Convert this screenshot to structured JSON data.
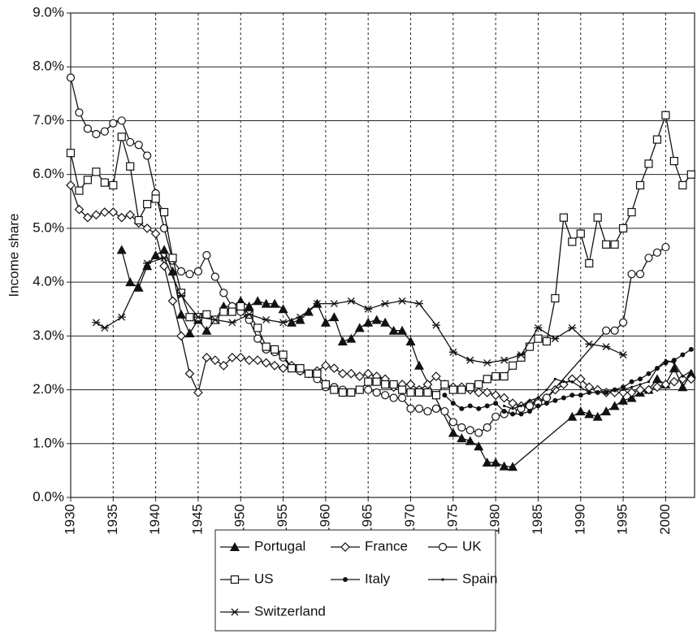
{
  "chart_data": {
    "type": "line",
    "ylabel": "Income share",
    "xlim": [
      1930,
      2003.4
    ],
    "ylim": [
      0,
      9
    ],
    "xticks": [
      1930,
      1935,
      1940,
      1945,
      1950,
      1955,
      1960,
      1965,
      1970,
      1975,
      1980,
      1985,
      1990,
      1995,
      2000
    ],
    "yticks": [
      {
        "value": 0,
        "label": "0.0%"
      },
      {
        "value": 1,
        "label": "1.0%"
      },
      {
        "value": 2,
        "label": "2.0%"
      },
      {
        "value": 3,
        "label": "3.0%"
      },
      {
        "value": 4,
        "label": "4.0%"
      },
      {
        "value": 5,
        "label": "5.0%"
      },
      {
        "value": 6,
        "label": "6.0%"
      },
      {
        "value": 7,
        "label": "7.0%"
      },
      {
        "value": 8,
        "label": "8.0%"
      },
      {
        "value": 9,
        "label": "9.0%"
      }
    ],
    "grid": true,
    "legend": "bottom",
    "series": [
      {
        "name": "Portugal",
        "color": "#111",
        "marker": "triangle",
        "x": [
          1936,
          1937,
          1938,
          1939,
          1940,
          1941,
          1942,
          1943,
          1944,
          1945,
          1946,
          1947,
          1948,
          1949,
          1950,
          1951,
          1952,
          1953,
          1954,
          1955,
          1956,
          1957,
          1958,
          1959,
          1960,
          1961,
          1962,
          1963,
          1964,
          1965,
          1966,
          1967,
          1968,
          1969,
          1970,
          1971,
          1975,
          1976,
          1977,
          1978,
          1979,
          1980,
          1981,
          1982,
          1989,
          1990,
          1991,
          1992,
          1993,
          1994,
          1995,
          1996,
          1997,
          1998,
          1999,
          2000,
          2001,
          2002,
          2003
        ],
        "values": [
          4.6,
          4.0,
          3.9,
          4.3,
          4.5,
          4.6,
          4.2,
          3.4,
          3.05,
          3.3,
          3.1,
          3.3,
          3.55,
          3.55,
          3.65,
          3.55,
          3.65,
          3.6,
          3.6,
          3.5,
          3.25,
          3.3,
          3.45,
          3.6,
          3.25,
          3.35,
          2.9,
          2.95,
          3.15,
          3.25,
          3.3,
          3.25,
          3.1,
          3.1,
          2.9,
          2.45,
          1.2,
          1.1,
          1.05,
          0.95,
          0.65,
          0.65,
          0.58,
          0.57,
          1.5,
          1.6,
          1.55,
          1.5,
          1.6,
          1.7,
          1.8,
          1.85,
          1.95,
          2.0,
          2.2,
          2.1,
          2.4,
          2.05,
          2.3
        ]
      },
      {
        "name": "France",
        "color": "#111",
        "marker": "diamond",
        "x": [
          1930,
          1931,
          1932,
          1933,
          1934,
          1935,
          1936,
          1937,
          1938,
          1939,
          1940,
          1941,
          1942,
          1943,
          1944,
          1945,
          1946,
          1947,
          1948,
          1949,
          1950,
          1951,
          1952,
          1953,
          1954,
          1955,
          1956,
          1957,
          1958,
          1959,
          1960,
          1961,
          1962,
          1963,
          1964,
          1965,
          1966,
          1967,
          1968,
          1969,
          1970,
          1971,
          1972,
          1973,
          1974,
          1975,
          1976,
          1977,
          1978,
          1979,
          1980,
          1981,
          1982,
          1983,
          1984,
          1985,
          1986,
          1987,
          1988,
          1989,
          1990,
          1991,
          1992,
          1993,
          1994,
          1995,
          1996,
          1997,
          1998,
          1999,
          2000,
          2001,
          2002,
          2003
        ],
        "values": [
          5.8,
          5.35,
          5.2,
          5.25,
          5.3,
          5.3,
          5.2,
          5.25,
          5.1,
          5.0,
          4.9,
          4.3,
          3.65,
          3.0,
          2.3,
          1.95,
          2.6,
          2.55,
          2.45,
          2.6,
          2.6,
          2.55,
          2.55,
          2.5,
          2.45,
          2.4,
          2.45,
          2.35,
          2.3,
          2.35,
          2.45,
          2.4,
          2.3,
          2.3,
          2.25,
          2.3,
          2.25,
          2.2,
          2.05,
          2.1,
          2.1,
          2.0,
          2.1,
          2.25,
          2.1,
          2.05,
          2.05,
          2.0,
          1.95,
          1.95,
          1.9,
          1.85,
          1.75,
          1.7,
          1.75,
          1.8,
          1.85,
          2.0,
          2.1,
          2.2,
          2.2,
          2.05,
          2.0,
          1.95,
          1.95,
          1.95,
          1.95,
          2.0,
          2.0,
          2.05,
          2.1,
          2.15,
          2.2,
          2.2
        ]
      },
      {
        "name": "UK",
        "color": "#111",
        "marker": "circle",
        "x": [
          1930,
          1931,
          1932,
          1933,
          1934,
          1935,
          1936,
          1937,
          1938,
          1939,
          1940,
          1941,
          1942,
          1943,
          1944,
          1945,
          1946,
          1947,
          1948,
          1949,
          1950,
          1951,
          1952,
          1953,
          1954,
          1955,
          1956,
          1957,
          1958,
          1959,
          1960,
          1961,
          1962,
          1963,
          1964,
          1965,
          1966,
          1967,
          1968,
          1969,
          1970,
          1971,
          1972,
          1973,
          1974,
          1975,
          1976,
          1977,
          1978,
          1979,
          1980,
          1981,
          1982,
          1983,
          1984,
          1985,
          1986,
          1993,
          1994,
          1995,
          1996,
          1997,
          1998,
          1999,
          2000
        ],
        "values": [
          7.8,
          7.15,
          6.85,
          6.75,
          6.8,
          6.95,
          7.0,
          6.6,
          6.55,
          6.35,
          5.65,
          5.0,
          4.4,
          4.2,
          4.15,
          4.2,
          4.5,
          4.1,
          3.8,
          3.55,
          3.45,
          3.3,
          2.95,
          2.75,
          2.7,
          2.6,
          2.4,
          2.35,
          2.3,
          2.2,
          2.05,
          2.05,
          2.0,
          1.95,
          2.0,
          2.0,
          1.95,
          1.9,
          1.85,
          1.85,
          1.65,
          1.65,
          1.6,
          1.65,
          1.6,
          1.4,
          1.3,
          1.25,
          1.2,
          1.3,
          1.5,
          1.55,
          1.6,
          1.65,
          1.7,
          1.75,
          1.85,
          3.1,
          3.1,
          3.25,
          4.15,
          4.15,
          4.45,
          4.55,
          4.65
        ]
      },
      {
        "name": "US",
        "color": "#111",
        "marker": "square",
        "x": [
          1930,
          1931,
          1932,
          1933,
          1934,
          1935,
          1936,
          1937,
          1938,
          1939,
          1940,
          1941,
          1942,
          1943,
          1944,
          1945,
          1946,
          1947,
          1948,
          1949,
          1950,
          1951,
          1952,
          1953,
          1954,
          1955,
          1956,
          1957,
          1958,
          1959,
          1960,
          1961,
          1962,
          1963,
          1964,
          1965,
          1966,
          1967,
          1968,
          1969,
          1970,
          1971,
          1972,
          1973,
          1974,
          1975,
          1976,
          1977,
          1978,
          1979,
          1980,
          1981,
          1982,
          1983,
          1984,
          1985,
          1986,
          1987,
          1988,
          1989,
          1990,
          1991,
          1992,
          1993,
          1994,
          1995,
          1996,
          1997,
          1998,
          1999,
          2000,
          2001,
          2002,
          2003
        ],
        "values": [
          6.4,
          5.7,
          5.9,
          6.05,
          5.85,
          5.8,
          6.7,
          6.15,
          5.15,
          5.45,
          5.55,
          5.3,
          4.45,
          3.8,
          3.35,
          3.35,
          3.4,
          3.3,
          3.45,
          3.45,
          3.55,
          3.4,
          3.15,
          2.8,
          2.75,
          2.65,
          2.4,
          2.4,
          2.3,
          2.3,
          2.1,
          2.0,
          1.95,
          1.95,
          2.0,
          2.15,
          2.15,
          2.1,
          2.1,
          2.0,
          1.95,
          1.95,
          1.95,
          1.9,
          2.1,
          2.0,
          2.0,
          2.05,
          2.1,
          2.2,
          2.25,
          2.25,
          2.45,
          2.6,
          2.8,
          2.95,
          2.9,
          3.7,
          5.2,
          4.75,
          4.9,
          4.35,
          5.2,
          4.7,
          4.7,
          5.0,
          5.3,
          5.8,
          6.2,
          6.65,
          7.1,
          6.25,
          5.8,
          6.0
        ]
      },
      {
        "name": "Italy",
        "color": "#111",
        "marker": "dot",
        "x": [
          1974,
          1975,
          1976,
          1977,
          1978,
          1979,
          1980,
          1981,
          1982,
          1983,
          1984,
          1985,
          1986,
          1987,
          1988,
          1989,
          1990,
          1991,
          1992,
          1993,
          1994,
          1995,
          1996,
          1997,
          1998,
          1999,
          2000,
          2001,
          2002,
          2003
        ],
        "values": [
          1.9,
          1.75,
          1.65,
          1.7,
          1.65,
          1.7,
          1.75,
          1.6,
          1.55,
          1.55,
          1.6,
          1.7,
          1.75,
          1.8,
          1.85,
          1.9,
          1.9,
          1.95,
          1.95,
          1.95,
          2.0,
          2.05,
          2.15,
          2.2,
          2.3,
          2.4,
          2.5,
          2.55,
          2.65,
          2.75
        ]
      },
      {
        "name": "Spain",
        "color": "#111",
        "marker": "smalldot",
        "x": [
          1981,
          1982,
          1983,
          1984,
          1985,
          1986,
          1987,
          1988,
          1989,
          1990,
          1991,
          1992,
          1993,
          1994,
          1995,
          1996,
          1997,
          1998,
          1999,
          2000,
          2001,
          2002,
          2003
        ],
        "values": [
          1.7,
          1.65,
          1.7,
          1.8,
          1.85,
          2.0,
          2.2,
          2.15,
          2.15,
          2.05,
          1.95,
          1.95,
          1.95,
          2.0,
          2.0,
          2.05,
          2.1,
          2.15,
          2.4,
          2.55,
          2.5,
          2.25,
          2.35
        ]
      },
      {
        "name": "Switzerland",
        "color": "#111",
        "marker": "asterisk",
        "x": [
          1933,
          1934,
          1936,
          1939,
          1941,
          1943,
          1945,
          1947,
          1949,
          1951,
          1953,
          1955,
          1957,
          1959,
          1961,
          1963,
          1965,
          1967,
          1969,
          1971,
          1973,
          1975,
          1977,
          1979,
          1981,
          1983,
          1985,
          1987,
          1989,
          1991,
          1993,
          1995
        ],
        "values": [
          3.25,
          3.15,
          3.35,
          4.35,
          4.45,
          3.75,
          3.35,
          3.3,
          3.25,
          3.4,
          3.3,
          3.25,
          3.35,
          3.6,
          3.6,
          3.65,
          3.5,
          3.6,
          3.65,
          3.6,
          3.2,
          2.7,
          2.55,
          2.5,
          2.55,
          2.65,
          3.15,
          2.95,
          3.15,
          2.85,
          2.8,
          2.65
        ]
      }
    ]
  }
}
